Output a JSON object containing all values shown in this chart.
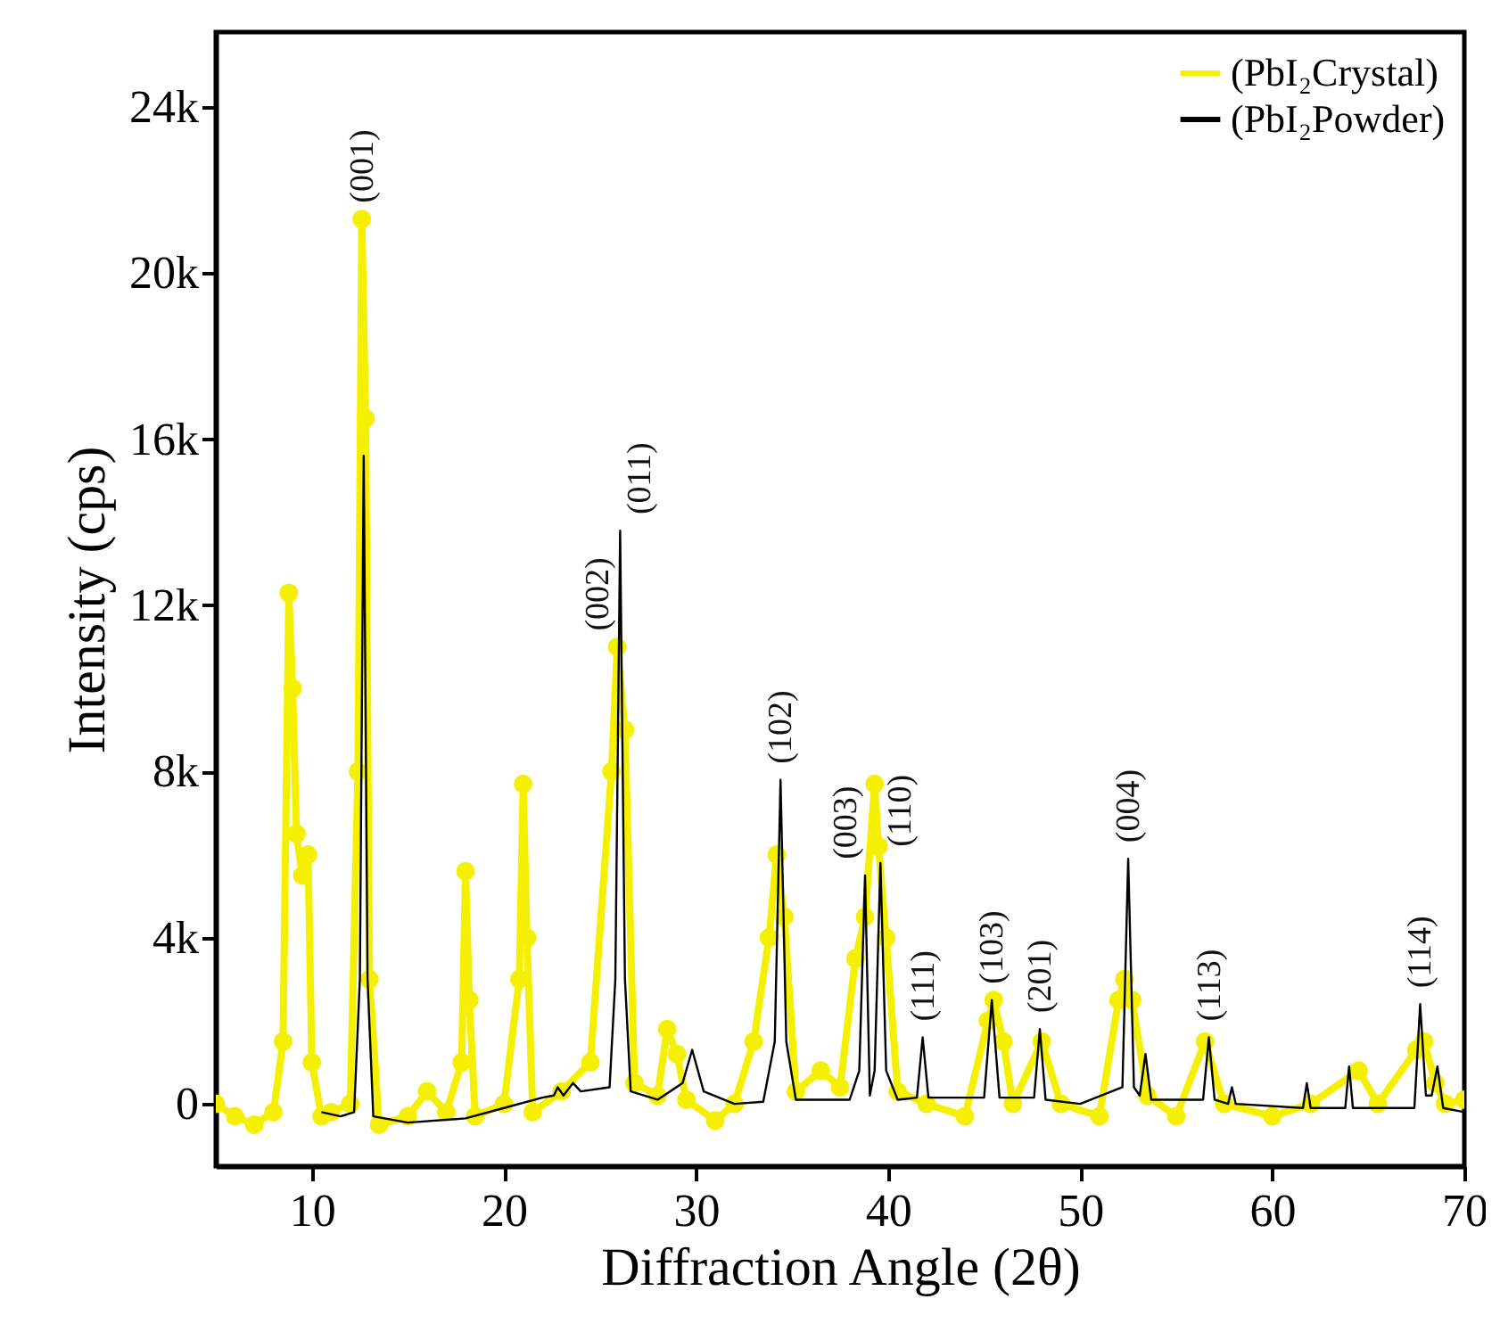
{
  "chart_data": {
    "type": "line",
    "xlabel": "Diffraction Angle (2θ)",
    "ylabel": "Intensity (cps)",
    "xlim": [
      5,
      70
    ],
    "xticks": [
      10,
      20,
      30,
      40,
      50,
      60,
      70
    ],
    "ylim": [
      -1500,
      25800
    ],
    "yticks": [
      {
        "value": 0,
        "label": "0"
      },
      {
        "value": 4000,
        "label": "4k"
      },
      {
        "value": 8000,
        "label": "8k"
      },
      {
        "value": 12000,
        "label": "12k"
      },
      {
        "value": 16000,
        "label": "16k"
      },
      {
        "value": 20000,
        "label": "20k"
      },
      {
        "value": 24000,
        "label": "24k"
      }
    ],
    "legend": "top right",
    "series": [
      {
        "name": "(PbI₂Crystal)",
        "color": "#f5f000",
        "marker": "circle",
        "x": [
          5,
          6,
          7,
          8,
          8.5,
          8.8,
          9.0,
          9.2,
          9.5,
          9.8,
          10,
          10.5,
          11,
          12,
          12.4,
          12.6,
          12.8,
          13.0,
          13.5,
          15,
          16,
          17,
          17.8,
          18,
          18.2,
          18.5,
          20,
          20.8,
          21,
          21.2,
          21.5,
          23,
          24.5,
          25.6,
          25.9,
          26.3,
          26.8,
          28,
          28.5,
          29,
          29.5,
          31,
          32,
          33,
          33.8,
          34.2,
          34.6,
          35.2,
          36.5,
          37.5,
          38.3,
          38.8,
          39.3,
          39.5,
          39.9,
          40.5,
          42,
          44,
          45.2,
          45.5,
          46,
          46.5,
          48,
          49,
          51,
          52,
          52.3,
          52.7,
          53.5,
          55,
          56.5,
          57.5,
          60,
          62,
          64.5,
          65.5,
          67.5,
          67.9,
          68.5,
          69,
          70
        ],
        "values": [
          0,
          -300,
          -500,
          -200,
          1500,
          12300,
          10000,
          6500,
          5500,
          6000,
          1000,
          -300,
          -200,
          0,
          8000,
          21300,
          16500,
          3000,
          -500,
          -300,
          300,
          -200,
          1000,
          5600,
          2500,
          -300,
          0,
          3000,
          7700,
          4000,
          -200,
          300,
          1000,
          8000,
          11000,
          9000,
          500,
          200,
          1800,
          1200,
          100,
          -400,
          0,
          1500,
          4000,
          6000,
          4500,
          300,
          800,
          400,
          3500,
          4500,
          7700,
          6200,
          4000,
          300,
          0,
          -300,
          2000,
          2500,
          1500,
          0,
          1500,
          0,
          -300,
          2500,
          3000,
          2500,
          200,
          -300,
          1500,
          0,
          -300,
          0,
          800,
          0,
          1300,
          1500,
          500,
          0,
          100
        ]
      },
      {
        "name": "(PbI₂Powder)",
        "color": "#000000",
        "marker": "none",
        "x": [
          10.5,
          11.5,
          12.2,
          12.5,
          12.7,
          12.9,
          13.2,
          15,
          18,
          20,
          22,
          22.6,
          22.8,
          23.1,
          23.6,
          24,
          25.5,
          25.8,
          26.05,
          26.3,
          26.6,
          28,
          29.3,
          29.8,
          30.4,
          32,
          33.5,
          34.1,
          34.4,
          34.7,
          35.2,
          38,
          38.5,
          38.8,
          39.05,
          39.3,
          39.6,
          39.9,
          40.5,
          41.5,
          41.8,
          42.1,
          45,
          45.4,
          45.8,
          47.6,
          47.9,
          48.2,
          50,
          52.2,
          52.5,
          52.8,
          53.1,
          53.4,
          53.7,
          56.4,
          56.7,
          57,
          57.7,
          57.9,
          58.1,
          61.6,
          61.8,
          62,
          63.8,
          64,
          64.2,
          67.4,
          67.7,
          68,
          68.3,
          68.6,
          68.9,
          70
        ],
        "values": [
          -200,
          -300,
          -200,
          3000,
          15600,
          3000,
          -300,
          -450,
          -350,
          -100,
          150,
          200,
          400,
          200,
          500,
          300,
          400,
          3000,
          13800,
          3000,
          300,
          100,
          500,
          1300,
          300,
          0,
          50,
          1500,
          7800,
          1500,
          100,
          100,
          800,
          5500,
          200,
          800,
          5800,
          800,
          100,
          150,
          1600,
          150,
          150,
          2500,
          150,
          150,
          1800,
          100,
          0,
          400,
          5900,
          400,
          200,
          1200,
          100,
          100,
          1600,
          100,
          0,
          400,
          0,
          -100,
          500,
          -100,
          -100,
          900,
          -100,
          -100,
          2400,
          200,
          200,
          900,
          -100,
          -200
        ]
      }
    ],
    "annotations": [
      {
        "text": "(001)",
        "x": 12.6,
        "y": 21300
      },
      {
        "text": "(002)",
        "x": 25.9,
        "y": 11000
      },
      {
        "text": "(011)",
        "x": 26.05,
        "y": 13800
      },
      {
        "text": "(102)",
        "x": 34.4,
        "y": 7800
      },
      {
        "text": "(003)",
        "x": 38.8,
        "y": 5500
      },
      {
        "text": "(110)",
        "x": 39.6,
        "y": 5800
      },
      {
        "text": "(111)",
        "x": 41.8,
        "y": 1600
      },
      {
        "text": "(103)",
        "x": 45.4,
        "y": 2500
      },
      {
        "text": "(201)",
        "x": 47.9,
        "y": 1800
      },
      {
        "text": "(004)",
        "x": 52.5,
        "y": 5900
      },
      {
        "text": "(113)",
        "x": 56.7,
        "y": 1600
      },
      {
        "text": "(114)",
        "x": 67.7,
        "y": 2400
      }
    ]
  }
}
